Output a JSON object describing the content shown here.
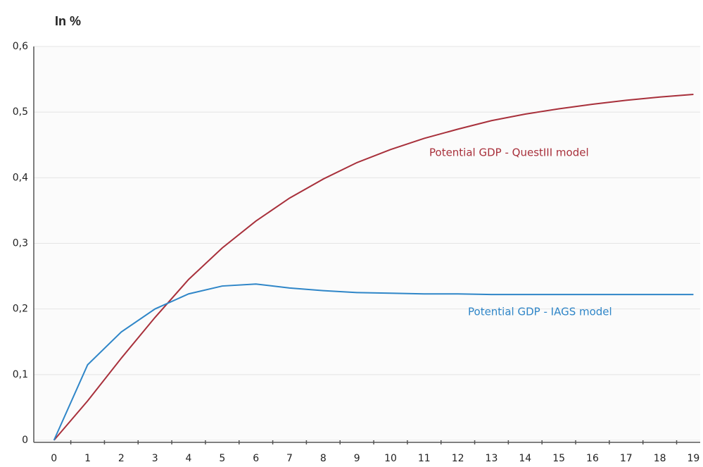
{
  "chart_data": {
    "type": "line",
    "title": "In %",
    "x": [
      0,
      1,
      2,
      3,
      4,
      5,
      6,
      7,
      8,
      9,
      10,
      11,
      12,
      13,
      14,
      15,
      16,
      17,
      18,
      19
    ],
    "xlim": [
      -0.6,
      19.2
    ],
    "xticks": [
      0,
      1,
      2,
      3,
      4,
      5,
      6,
      7,
      8,
      9,
      10,
      11,
      12,
      13,
      14,
      15,
      16,
      17,
      18,
      19
    ],
    "ylim": [
      0,
      0.6
    ],
    "yticks": [
      0,
      {
        "value": 0.1,
        "label": "0,1"
      },
      {
        "value": 0.2,
        "label": "0,2"
      },
      {
        "value": 0.3,
        "label": "0,3"
      },
      {
        "value": 0.4,
        "label": "0,4"
      },
      {
        "value": 0.5,
        "label": "0,5"
      },
      {
        "value": 0.6,
        "label": "0,6"
      }
    ],
    "grid": true,
    "series": [
      {
        "name": "Potential GDP - QuestIII model",
        "color": "#a8303b",
        "values": [
          0,
          0.06,
          0.125,
          0.187,
          0.245,
          0.293,
          0.334,
          0.369,
          0.398,
          0.423,
          0.443,
          0.46,
          0.474,
          0.487,
          0.497,
          0.505,
          0.512,
          0.518,
          0.523,
          0.527
        ]
      },
      {
        "name": "Potential GDP - IAGS model",
        "color": "#2f86c8",
        "values": [
          0,
          0.115,
          0.165,
          0.2,
          0.223,
          0.235,
          0.238,
          0.232,
          0.228,
          0.225,
          0.224,
          0.223,
          0.223,
          0.222,
          0.222,
          0.222,
          0.222,
          0.222,
          0.222,
          0.222
        ]
      }
    ]
  }
}
